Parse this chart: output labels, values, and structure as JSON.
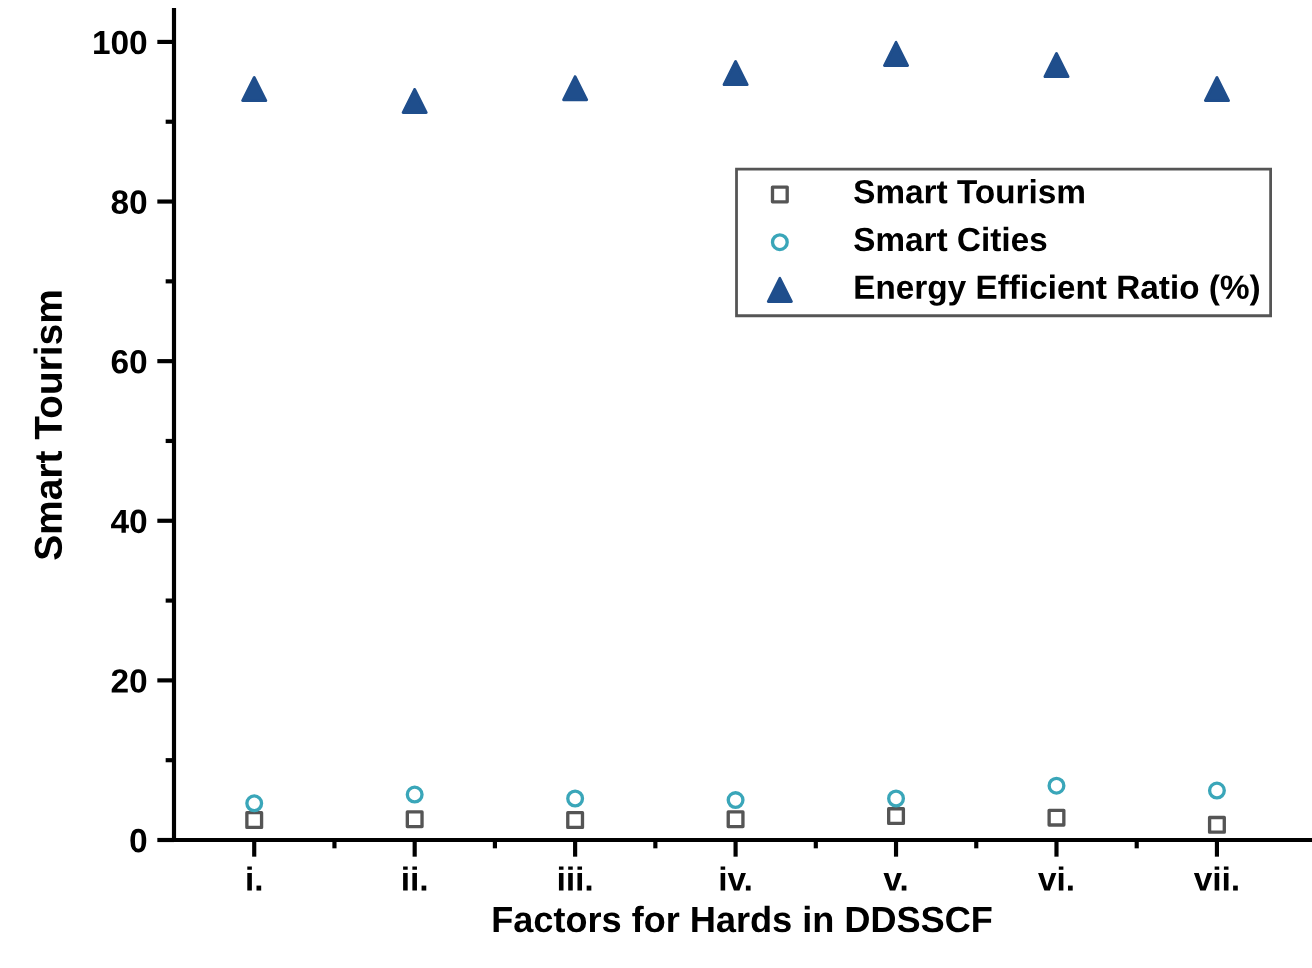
{
  "chart_data": {
    "type": "scatter",
    "xlabel": "Factors for Hards in DDSSCF",
    "ylabel": "Smart Tourism",
    "categories": [
      "i.",
      "ii.",
      "iii.",
      "iv.",
      "v.",
      "vi.",
      "vii."
    ],
    "series": [
      {
        "name": "Smart Tourism",
        "color": "#555555",
        "marker": "square",
        "values": [
          2.5,
          2.6,
          2.5,
          2.6,
          3.0,
          2.8,
          1.9
        ]
      },
      {
        "name": "Smart Cities",
        "color": "#3aa6b9",
        "marker": "circle",
        "values": [
          4.6,
          5.7,
          5.2,
          5.0,
          5.2,
          6.8,
          6.2
        ]
      },
      {
        "name": "Energy Efficient Ratio (%)",
        "color": "#1f4e8c",
        "marker": "triangle",
        "values": [
          94.1,
          92.6,
          94.2,
          96.1,
          98.5,
          97.1,
          94.1
        ]
      }
    ],
    "ylim": [
      0,
      104
    ],
    "yticks": [
      0,
      20,
      40,
      60,
      80,
      100
    ],
    "grid": false,
    "legend": "right"
  }
}
